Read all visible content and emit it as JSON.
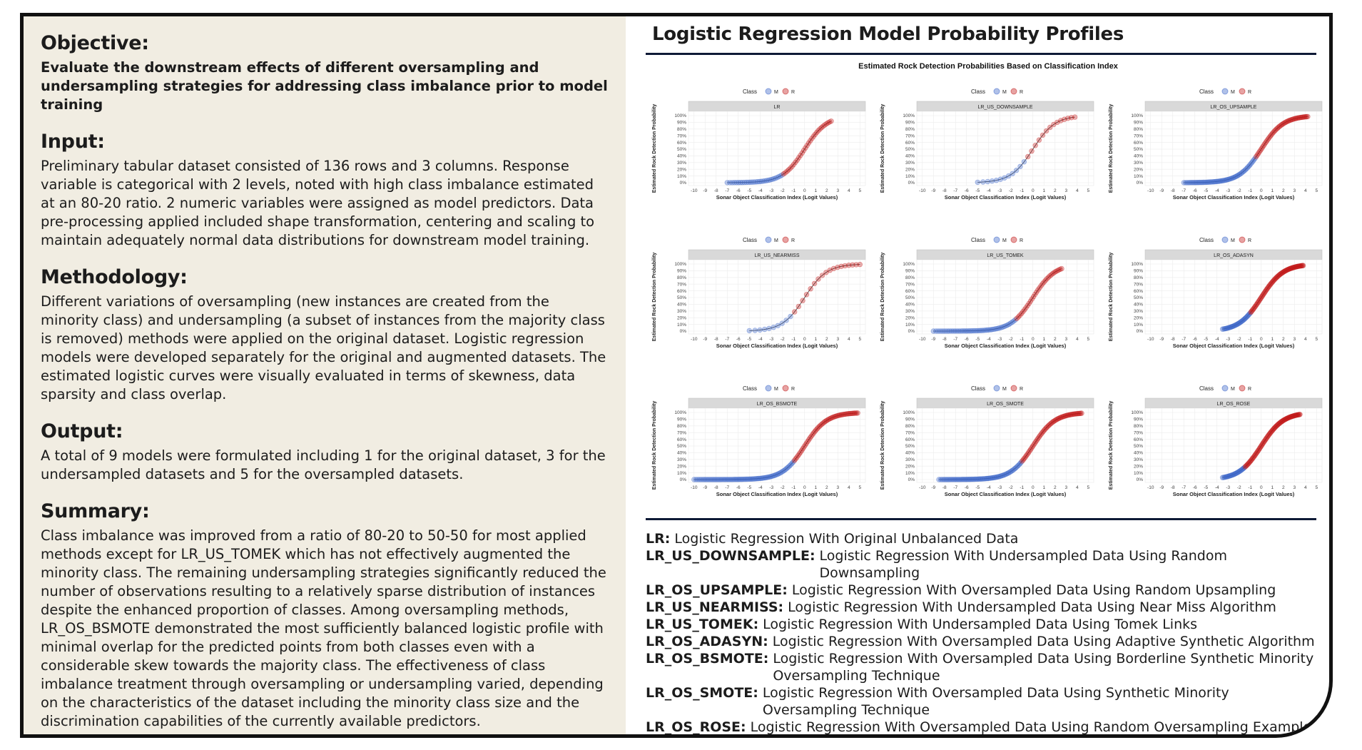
{
  "left": {
    "sections": [
      {
        "heading": "Objective:",
        "bold": true,
        "body": "Evaluate the downstream effects of different oversampling and undersampling strategies for addressing class imbalance prior to model training"
      },
      {
        "heading": "Input:",
        "bold": false,
        "body": "Preliminary tabular dataset consisted of 136 rows and 3 columns. Response variable is categorical with 2 levels, noted with high class imbalance estimated at an 80-20 ratio. 2 numeric variables were assigned as model predictors. Data pre-processing applied included shape transformation, centering and scaling to maintain adequately normal data distributions for downstream model training."
      },
      {
        "heading": "Methodology:",
        "bold": false,
        "body": "Different variations of oversampling (new instances are created from the minority class) and undersampling (a subset of instances from the majority class is removed) methods were applied on the original dataset. Logistic regression models were developed separately for the original and augmented datasets. The estimated logistic curves were visually evaluated in terms of skewness, data sparsity and class overlap."
      },
      {
        "heading": "Output:",
        "bold": false,
        "body": "A total of 9 models were formulated including 1 for the original dataset, 3 for the undersampled datasets and 5 for the oversampled datasets."
      },
      {
        "heading": "Summary:",
        "bold": false,
        "body": "Class imbalance was improved from a ratio of 80-20 to 50-50 for most applied methods except for LR_US_TOMEK which has not effectively augmented the minority class. The remaining undersampling strategies significantly reduced the number of observations resulting to a relatively sparse distribution of instances despite the enhanced proportion of classes. Among oversampling methods, LR_OS_BSMOTE demonstrated the most sufficiently balanced logistic profile with minimal overlap for the predicted points from both classes even with a considerable skew towards the majority class. The effectiveness of class imbalance treatment through oversampling or undersampling varied, depending on the characteristics of the dataset including the minority class size and the discrimination capabilities of the currently available predictors."
      }
    ]
  },
  "right": {
    "title": "Logistic Regression Model Probability Profiles"
  },
  "colors": {
    "M": "#3a63c8",
    "R": "#c21818",
    "strip": "#d9d9d9"
  },
  "chart_data": {
    "type": "scatter",
    "title": "Estimated Rock Detection Probabilities Based on Classification Index",
    "xlabel": "Sonar Object Classification Index (Logit Values)",
    "ylabel": "Estimated Rock Detection Probability",
    "legend_title": "Class",
    "legend_labels": [
      "M",
      "R"
    ],
    "legend_position": "top",
    "xlim": [
      -10.5,
      5.5
    ],
    "ylim": [
      0,
      1
    ],
    "x_ticks": [
      "-10",
      "-9",
      "-8",
      "-7",
      "-6",
      "-5",
      "-4",
      "-3",
      "-2",
      "-1",
      "0",
      "1",
      "2",
      "3",
      "4",
      "5"
    ],
    "y_ticks": [
      "0%",
      "10%",
      "20%",
      "30%",
      "40%",
      "50%",
      "60%",
      "70%",
      "80%",
      "90%",
      "100%"
    ],
    "grid": true,
    "panels": [
      {
        "name": "LR",
        "x_range": [
          -7,
          2.4
        ],
        "boundary": -2,
        "points": 60
      },
      {
        "name": "LR_US_DOWNSAMPLE",
        "x_range": [
          -5,
          3.8
        ],
        "boundary": -0.5,
        "points": 26
      },
      {
        "name": "LR_OS_UPSAMPLE",
        "x_range": [
          -7,
          4.2
        ],
        "boundary": -0.5,
        "points": 110
      },
      {
        "name": "LR_US_NEARMISS",
        "x_range": [
          -5,
          5
        ],
        "boundary": -1,
        "points": 28
      },
      {
        "name": "LR_US_TOMEK",
        "x_range": [
          -9,
          2.6
        ],
        "boundary": -1.5,
        "points": 80
      },
      {
        "name": "LR_OS_ADASYN",
        "x_range": [
          -3.5,
          3.8
        ],
        "boundary": -1,
        "points": 110
      },
      {
        "name": "LR_OS_BSMOTE",
        "x_range": [
          -10,
          4.8
        ],
        "boundary": -1,
        "points": 130
      },
      {
        "name": "LR_OS_SMOTE",
        "x_range": [
          -8.5,
          4.4
        ],
        "boundary": -1,
        "points": 130
      },
      {
        "name": "LR_OS_ROSE",
        "x_range": [
          -3.5,
          3.5
        ],
        "boundary": -1.5,
        "points": 110
      }
    ]
  },
  "definitions": [
    {
      "key": "LR:",
      "text": "Logistic Regression With Original Unbalanced Data"
    },
    {
      "key": "LR_US_DOWNSAMPLE:",
      "text": "Logistic Regression With Undersampled Data Using Random Downsampling"
    },
    {
      "key": "LR_OS_UPSAMPLE:",
      "text": "Logistic Regression With Oversampled Data Using Random Upsampling"
    },
    {
      "key": "LR_US_NEARMISS:",
      "text": "Logistic Regression With Undersampled Data Using Near Miss Algorithm"
    },
    {
      "key": "LR_US_TOMEK:",
      "text": "Logistic Regression With Undersampled Data Using Tomek Links"
    },
    {
      "key": "LR_OS_ADASYN:",
      "text": "Logistic Regression With Oversampled Data Using Adaptive Synthetic Algorithm"
    },
    {
      "key": "LR_OS_BSMOTE:",
      "text": "Logistic Regression With Oversampled Data Using Borderline Synthetic Minority Oversampling Technique"
    },
    {
      "key": "LR_OS_SMOTE:",
      "text": "Logistic Regression With Oversampled Data Using Synthetic Minority Oversampling Technique"
    },
    {
      "key": "LR_OS_ROSE:",
      "text": "Logistic Regression With Oversampled Data Using Random Oversampling Examples"
    }
  ]
}
